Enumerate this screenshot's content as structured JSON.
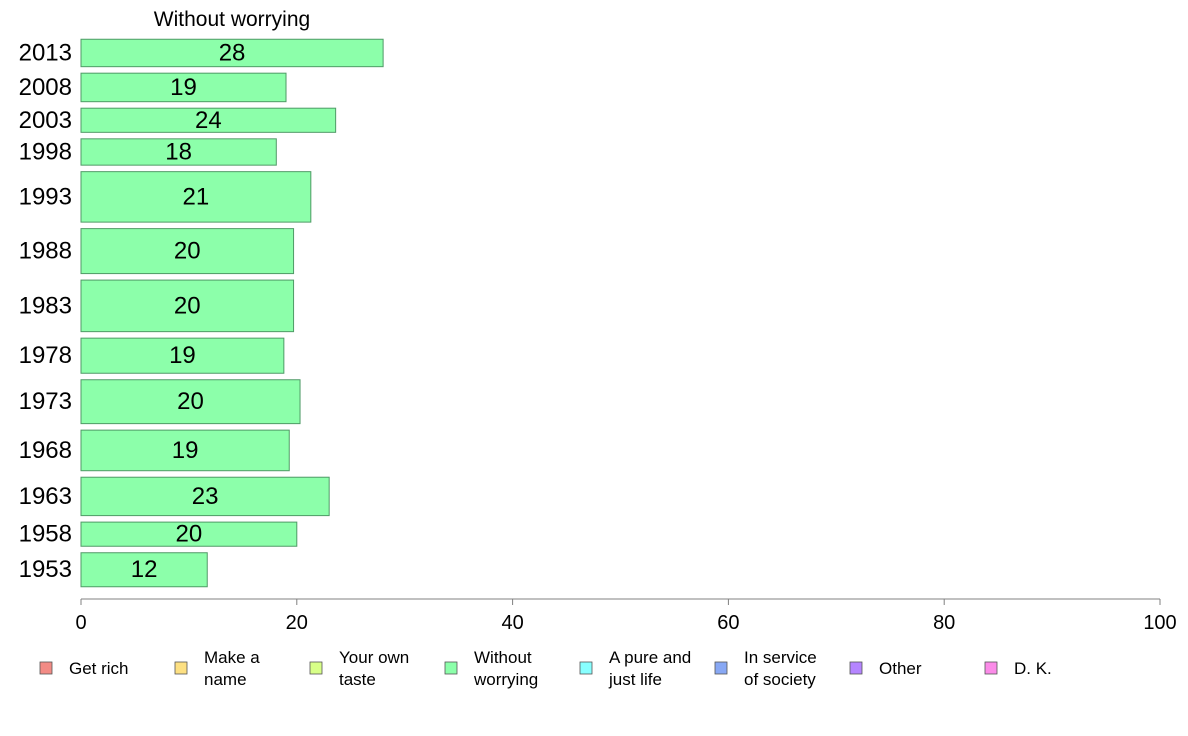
{
  "chart_data": {
    "type": "bar",
    "orientation": "horizontal",
    "title": "Without worrying",
    "categories": [
      "2013",
      "2008",
      "2003",
      "1998",
      "1993",
      "1988",
      "1983",
      "1978",
      "1973",
      "1968",
      "1963",
      "1958",
      "1953"
    ],
    "values": [
      28,
      19,
      24,
      18,
      21,
      20,
      20,
      19,
      20,
      19,
      23,
      20,
      12
    ],
    "bar_extents": [
      28,
      19,
      23.6,
      18.1,
      21.3,
      19.7,
      19.7,
      18.8,
      20.3,
      19.3,
      23,
      20,
      11.7
    ],
    "bar_weights": [
      25,
      26,
      22,
      24,
      46,
      41,
      47,
      32,
      40,
      37,
      35,
      22,
      31
    ],
    "xlim": [
      0,
      100
    ],
    "xticks": [
      0,
      20,
      40,
      60,
      80,
      100
    ],
    "bar_color": "#8cffaa",
    "bar_stroke": "#4f9a66",
    "axis_color": "#808080",
    "legend": [
      {
        "label": "Get rich",
        "color": "#f28b85"
      },
      {
        "label": "Make a name",
        "color": "#fde082"
      },
      {
        "label": "Your own taste",
        "color": "#d8ff88"
      },
      {
        "label": "Without worrying",
        "color": "#8cffaa"
      },
      {
        "label": "A pure and just life",
        "color": "#88ffff"
      },
      {
        "label": "In service of society",
        "color": "#88a8f4"
      },
      {
        "label": "Other",
        "color": "#b585ff"
      },
      {
        "label": "D. K.",
        "color": "#fb8be8"
      }
    ]
  }
}
